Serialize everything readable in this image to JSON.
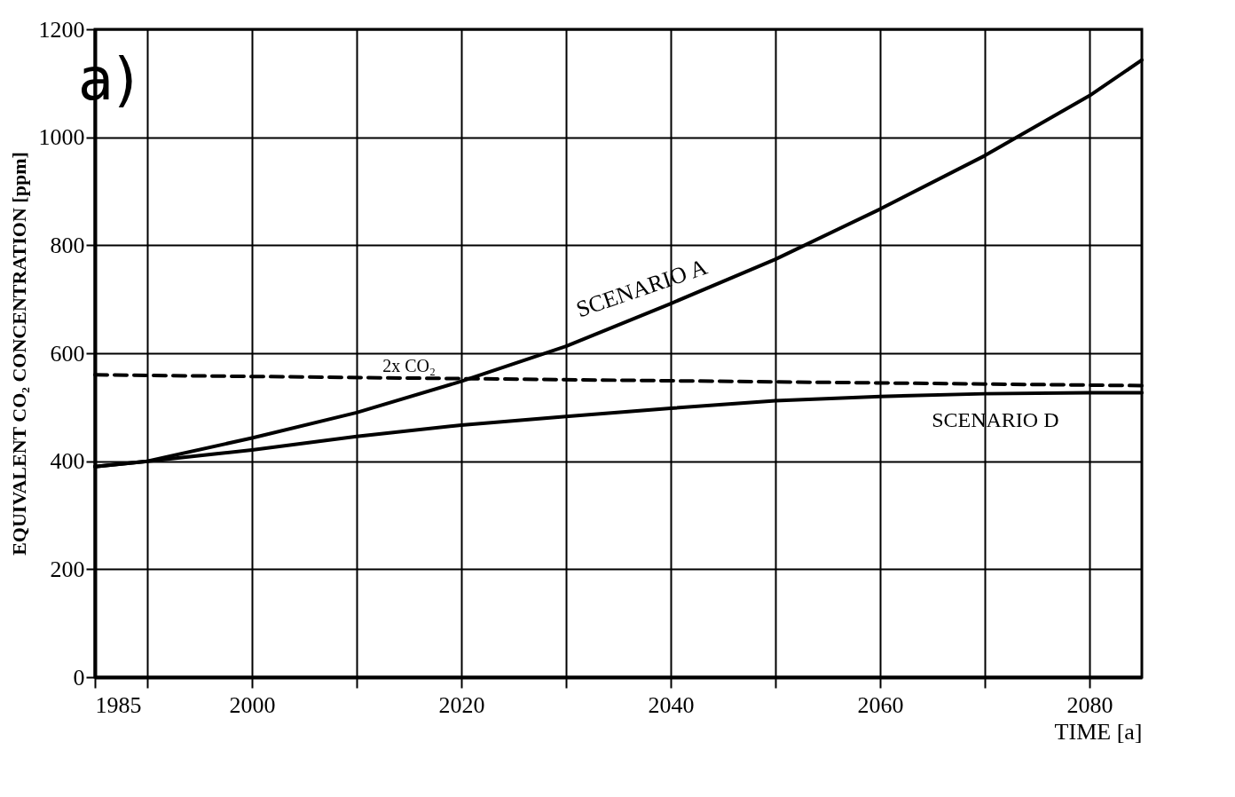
{
  "chart_data": {
    "type": "line",
    "title": "a)",
    "xlabel": "TIME [a]",
    "ylabel": "EQUIVALENT CO₂ CONCENTRATION [ppm]",
    "x": [
      1985,
      1990,
      2000,
      2010,
      2020,
      2030,
      2040,
      2050,
      2060,
      2070,
      2080,
      2085
    ],
    "series": [
      {
        "name": "SCENARIO A",
        "color": "#000000",
        "values": [
          390,
          400,
          443,
          490,
          548,
          613,
          692,
          774,
          867,
          966,
          1077,
          1143
        ]
      },
      {
        "name": "SCENARIO D",
        "color": "#000000",
        "values": [
          390,
          400,
          421,
          446,
          467,
          483,
          498,
          512,
          520,
          525,
          527,
          527
        ]
      },
      {
        "name": "2x CO₂",
        "color": "#000000",
        "x": [
          1985,
          2085
        ],
        "values": [
          560,
          540
        ],
        "line_style": "dashed"
      }
    ],
    "xlim": [
      1985,
      2085
    ],
    "ylim": [
      0,
      1200
    ],
    "xticks": [
      1985,
      {
        "value": 1990,
        "label": null
      },
      2000,
      {
        "value": 2010,
        "label": null
      },
      2020,
      {
        "value": 2030,
        "label": null
      },
      2040,
      {
        "value": 2050,
        "label": null
      },
      2060,
      {
        "value": 2070,
        "label": null
      },
      2080
    ],
    "yticks": [
      0,
      200,
      400,
      600,
      800,
      1000,
      1200
    ],
    "grid": true
  }
}
